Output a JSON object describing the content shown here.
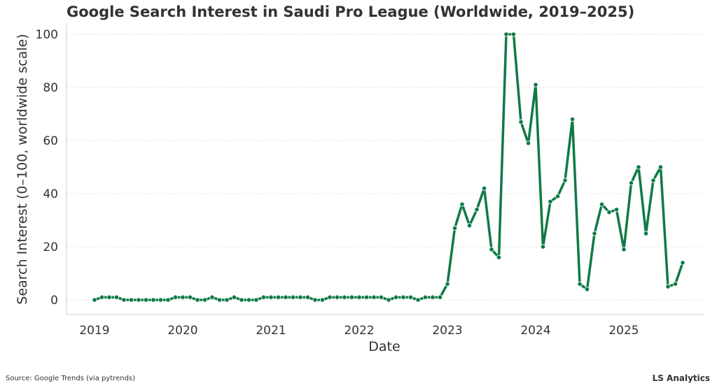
{
  "chart_data": {
    "type": "line",
    "title": "Google Search Interest in Saudi Pro League (Worldwide, 2019–2025)",
    "xlabel": "Date",
    "ylabel": "Search Interest (0–100, worldwide scale)",
    "ylim": [
      0,
      100
    ],
    "yticks": [
      0,
      20,
      40,
      60,
      80,
      100
    ],
    "xtick_labels": [
      "2019",
      "2020",
      "2021",
      "2022",
      "2023",
      "2024",
      "2025"
    ],
    "grid": "horizontal dotted",
    "color": "#0e7a46",
    "series": [
      {
        "points": [
          [
            "2019-01",
            0
          ],
          [
            "2019-02",
            1
          ],
          [
            "2019-03",
            1
          ],
          [
            "2019-04",
            1
          ],
          [
            "2019-05",
            0
          ],
          [
            "2019-06",
            0
          ],
          [
            "2019-07",
            0
          ],
          [
            "2019-08",
            0
          ],
          [
            "2019-09",
            0
          ],
          [
            "2019-10",
            0
          ],
          [
            "2019-11",
            0
          ],
          [
            "2019-12",
            1
          ],
          [
            "2020-01",
            1
          ],
          [
            "2020-02",
            1
          ],
          [
            "2020-03",
            0
          ],
          [
            "2020-04",
            0
          ],
          [
            "2020-05",
            1
          ],
          [
            "2020-06",
            0
          ],
          [
            "2020-07",
            0
          ],
          [
            "2020-08",
            1
          ],
          [
            "2020-09",
            0
          ],
          [
            "2020-10",
            0
          ],
          [
            "2020-11",
            0
          ],
          [
            "2020-12",
            1
          ],
          [
            "2021-01",
            1
          ],
          [
            "2021-02",
            1
          ],
          [
            "2021-03",
            1
          ],
          [
            "2021-04",
            1
          ],
          [
            "2021-05",
            1
          ],
          [
            "2021-06",
            1
          ],
          [
            "2021-07",
            0
          ],
          [
            "2021-08",
            0
          ],
          [
            "2021-09",
            1
          ],
          [
            "2021-10",
            1
          ],
          [
            "2021-11",
            1
          ],
          [
            "2021-12",
            1
          ],
          [
            "2022-01",
            1
          ],
          [
            "2022-02",
            1
          ],
          [
            "2022-03",
            1
          ],
          [
            "2022-04",
            1
          ],
          [
            "2022-05",
            0
          ],
          [
            "2022-06",
            1
          ],
          [
            "2022-07",
            1
          ],
          [
            "2022-08",
            1
          ],
          [
            "2022-09",
            0
          ],
          [
            "2022-10",
            1
          ],
          [
            "2022-11",
            1
          ],
          [
            "2022-12",
            1
          ],
          [
            "2023-01",
            6
          ],
          [
            "2023-02",
            27
          ],
          [
            "2023-03",
            36
          ],
          [
            "2023-04",
            28
          ],
          [
            "2023-05",
            34
          ],
          [
            "2023-06",
            42
          ],
          [
            "2023-07",
            19
          ],
          [
            "2023-08",
            16
          ],
          [
            "2023-09",
            100
          ],
          [
            "2023-10",
            100
          ],
          [
            "2023-11",
            67
          ],
          [
            "2023-12",
            59
          ],
          [
            "2024-01",
            81
          ],
          [
            "2024-02",
            20
          ],
          [
            "2024-03",
            37
          ],
          [
            "2024-04",
            39
          ],
          [
            "2024-05",
            45
          ],
          [
            "2024-06",
            68
          ],
          [
            "2024-07",
            6
          ],
          [
            "2024-08",
            4
          ],
          [
            "2024-09",
            25
          ],
          [
            "2024-10",
            36
          ],
          [
            "2024-11",
            33
          ],
          [
            "2024-12",
            34
          ],
          [
            "2025-01",
            19
          ],
          [
            "2025-02",
            44
          ],
          [
            "2025-03",
            50
          ],
          [
            "2025-04",
            25
          ],
          [
            "2025-05",
            45
          ],
          [
            "2025-06",
            50
          ],
          [
            "2025-07",
            5
          ],
          [
            "2025-08",
            6
          ],
          [
            "2025-09",
            14
          ]
        ]
      }
    ]
  },
  "footer": {
    "source": "Source: Google Trends (via pytrends)",
    "brand": "LS Analytics"
  }
}
